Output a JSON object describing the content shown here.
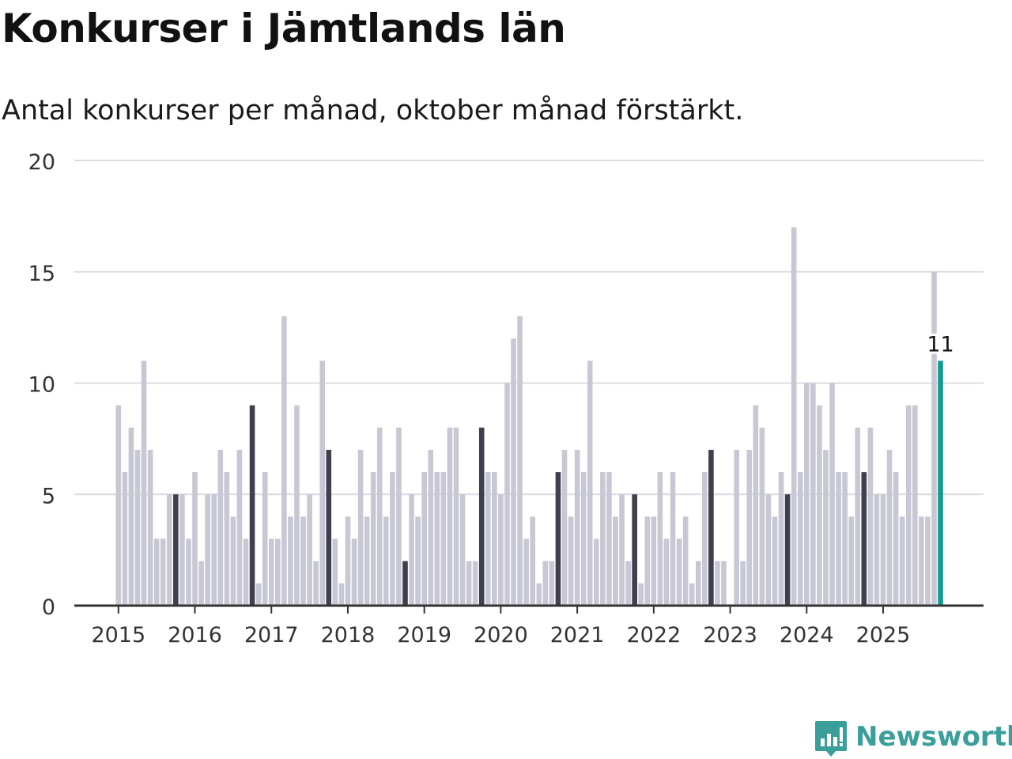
{
  "header": {
    "title": "Konkurser i Jämtlands län",
    "subtitle": "Antal konkurser per månad, oktober månad förstärkt."
  },
  "chart_data": {
    "type": "bar",
    "title": "Konkurser i Jämtlands län",
    "subtitle": "Antal konkurser per månad, oktober månad förstärkt.",
    "xlabel": "",
    "ylabel": "",
    "ylim": [
      0,
      20
    ],
    "yticks": [
      "0",
      "5",
      "10",
      "15",
      "20"
    ],
    "grid": true,
    "years": [
      "2015",
      "2016",
      "2017",
      "2018",
      "2019",
      "2020",
      "2021",
      "2022",
      "2023",
      "2024",
      "2025"
    ],
    "start": "2015-01",
    "values": [
      9,
      6,
      8,
      7,
      11,
      7,
      3,
      3,
      5,
      5,
      5,
      3,
      6,
      2,
      5,
      5,
      7,
      6,
      4,
      7,
      3,
      9,
      1,
      6,
      3,
      3,
      13,
      4,
      9,
      4,
      5,
      2,
      11,
      7,
      3,
      1,
      4,
      3,
      7,
      4,
      6,
      8,
      4,
      6,
      8,
      2,
      5,
      4,
      6,
      7,
      6,
      6,
      8,
      8,
      5,
      2,
      2,
      8,
      6,
      6,
      5,
      10,
      12,
      13,
      3,
      4,
      1,
      2,
      2,
      6,
      7,
      4,
      7,
      6,
      11,
      3,
      6,
      6,
      4,
      5,
      2,
      5,
      1,
      4,
      4,
      6,
      3,
      6,
      3,
      4,
      1,
      2,
      6,
      7,
      2,
      2,
      0,
      7,
      2,
      7,
      9,
      8,
      5,
      4,
      6,
      5,
      17,
      6,
      10,
      10,
      9,
      7,
      10,
      6,
      6,
      4,
      8,
      6,
      8,
      5,
      5,
      7,
      6,
      4,
      9,
      9,
      4,
      4,
      15,
      11
    ],
    "highlight_month": "oktober",
    "highlight_index": 9,
    "latest_label": "11",
    "colors": {
      "normal": "#c8c8d4",
      "october": "#3f3f4e",
      "latest": "#119c92",
      "grid": "#dcdce2",
      "axis": "#333333",
      "tick_text": "#333333"
    }
  },
  "brand": {
    "name": "Newsworthy",
    "icon": "newsworthy-logo-icon",
    "color": "#3a9e9a"
  }
}
